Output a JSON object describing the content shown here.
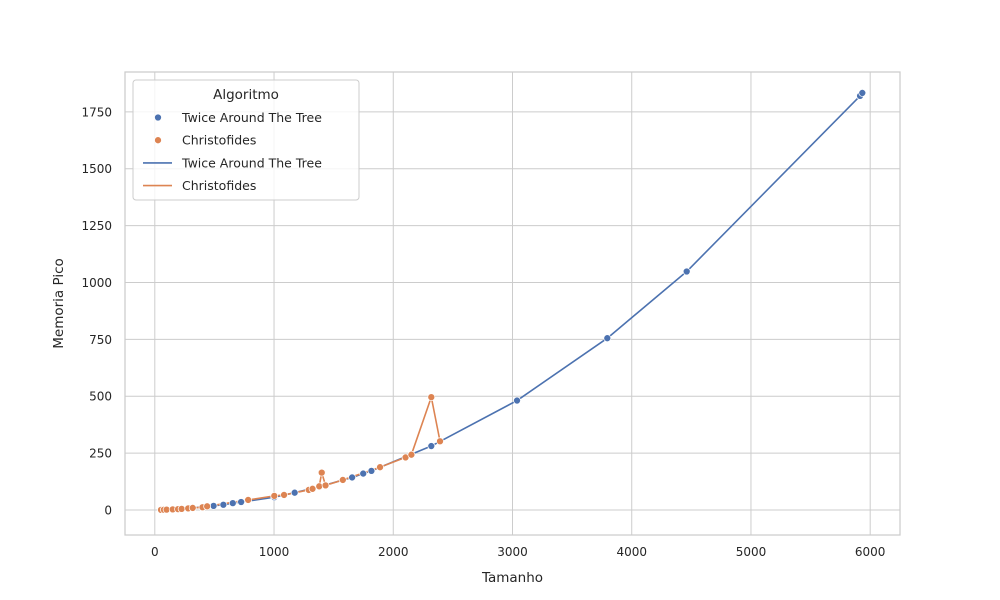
{
  "chart_data": {
    "type": "line",
    "title": "",
    "xlabel": "Tamanho",
    "ylabel": "Memoria Pico",
    "xlim": [
      -250,
      6250
    ],
    "ylim": [
      -110,
      1925
    ],
    "xticks": [
      0,
      1000,
      2000,
      3000,
      4000,
      5000,
      6000
    ],
    "yticks": [
      0,
      250,
      500,
      750,
      1000,
      1250,
      1500,
      1750
    ],
    "grid": true,
    "legend": {
      "title": "Algoritmo",
      "placement": "top-left",
      "entries": [
        {
          "label": "Twice Around The Tree",
          "kind": "marker",
          "color": "#4c72b0"
        },
        {
          "label": "Christofides",
          "kind": "marker",
          "color": "#dd8452"
        },
        {
          "label": "Twice Around The Tree",
          "kind": "line",
          "color": "#4c72b0"
        },
        {
          "label": "Christofides",
          "kind": "line",
          "color": "#dd8452"
        }
      ]
    },
    "series": [
      {
        "name": "Twice Around The Tree",
        "color": "#4c72b0",
        "x": [
          52,
          76,
          99,
          150,
          195,
          225,
          280,
          318,
          493,
          575,
          654,
          724,
          1002,
          1173,
          1379,
          1655,
          1748,
          1817,
          2319,
          3038,
          3795,
          4461,
          5915,
          5934
        ],
        "y": [
          0.5,
          0.9,
          1.4,
          2.6,
          3.8,
          5,
          7,
          9,
          18,
          23,
          30,
          35,
          56,
          76,
          102,
          143,
          160,
          172,
          281,
          481,
          755,
          1048,
          1820,
          1833
        ]
      },
      {
        "name": "Christofides",
        "color": "#dd8452",
        "x": [
          52,
          76,
          99,
          150,
          195,
          225,
          280,
          318,
          400,
          439,
          783,
          1002,
          1084,
          1291,
          1323,
          1379,
          1400,
          1432,
          1577,
          1889,
          2103,
          2152,
          2319,
          2392
        ],
        "y": [
          0.5,
          0.9,
          1.4,
          2.6,
          3.8,
          5,
          7,
          9,
          12,
          16,
          44,
          62,
          66,
          88,
          93,
          104,
          164,
          108,
          132,
          188,
          231,
          243,
          496,
          302
        ]
      }
    ]
  }
}
